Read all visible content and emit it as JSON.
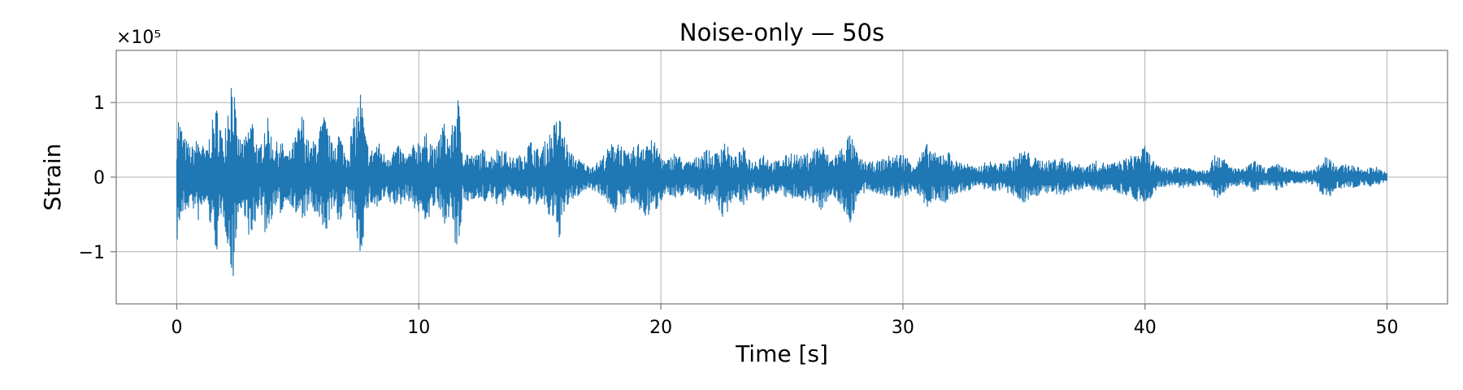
{
  "chart_data": {
    "type": "line",
    "title": "Noise-only — 50s",
    "xlabel": "Time [s]",
    "ylabel": "Strain",
    "y_offset_label": "×10⁵",
    "xlim": [
      -2.5,
      52.5
    ],
    "ylim": [
      -1.7,
      1.7
    ],
    "xticks": [
      0,
      10,
      20,
      30,
      40,
      50
    ],
    "xtick_labels": [
      "0",
      "10",
      "20",
      "30",
      "40",
      "50"
    ],
    "yticks": [
      -1,
      0,
      1
    ],
    "ytick_labels": [
      "−1",
      "0",
      "1"
    ],
    "grid": true,
    "series": [
      {
        "color": "#1f77b4",
        "x_range": [
          0,
          50
        ],
        "envelope": {
          "t": [
            0.0,
            0.15,
            0.3,
            0.6,
            0.9,
            1.2,
            1.5,
            1.7,
            1.9,
            2.1,
            2.3,
            2.5,
            2.8,
            3.1,
            3.4,
            3.7,
            4.0,
            4.3,
            4.6,
            4.9,
            5.2,
            5.5,
            5.8,
            6.1,
            6.4,
            6.7,
            7.0,
            7.3,
            7.6,
            7.8,
            8.0,
            8.3,
            8.6,
            8.9,
            9.2,
            9.5,
            9.8,
            10.1,
            10.4,
            10.7,
            11.0,
            11.3,
            11.6,
            11.8,
            12.0,
            12.3,
            12.6,
            13.0,
            13.4,
            13.8,
            14.2,
            14.6,
            15.0,
            15.4,
            15.8,
            16.2,
            16.6,
            17.0,
            17.4,
            17.8,
            18.2,
            18.6,
            19.0,
            19.4,
            19.8,
            20.2,
            20.6,
            21.0,
            21.4,
            21.8,
            22.2,
            22.6,
            23.0,
            23.4,
            23.8,
            24.2,
            24.6,
            25.0,
            25.4,
            25.8,
            26.2,
            26.6,
            27.0,
            27.4,
            27.8,
            28.2,
            28.6,
            29.0,
            29.5,
            30.0,
            30.5,
            31.0,
            31.4,
            31.8,
            32.2,
            32.6,
            33.0,
            33.5,
            34.0,
            34.5,
            35.0,
            35.5,
            36.0,
            36.5,
            37.0,
            37.5,
            38.0,
            38.5,
            39.0,
            39.5,
            40.0,
            40.5,
            41.0,
            41.5,
            42.0,
            42.5,
            43.0,
            43.5,
            44.0,
            44.5,
            45.0,
            45.5,
            46.0,
            46.5,
            47.0,
            47.5,
            48.0,
            48.5,
            49.0,
            49.5,
            50.0
          ],
          "upper": [
            0.95,
            0.75,
            0.55,
            0.4,
            0.55,
            0.35,
            0.8,
            1.0,
            0.5,
            1.05,
            1.55,
            0.55,
            0.5,
            0.85,
            0.35,
            0.88,
            0.45,
            0.5,
            0.3,
            0.55,
            0.88,
            0.4,
            0.58,
            0.85,
            0.45,
            0.65,
            0.3,
            0.75,
            1.2,
            0.55,
            0.35,
            0.5,
            0.3,
            0.38,
            0.42,
            0.28,
            0.45,
            0.55,
            0.6,
            0.35,
            0.78,
            0.5,
            1.2,
            0.4,
            0.35,
            0.28,
            0.38,
            0.3,
            0.45,
            0.25,
            0.3,
            0.5,
            0.35,
            0.6,
            0.85,
            0.35,
            0.25,
            0.15,
            0.2,
            0.38,
            0.55,
            0.3,
            0.45,
            0.55,
            0.45,
            0.2,
            0.35,
            0.2,
            0.25,
            0.4,
            0.3,
            0.52,
            0.25,
            0.4,
            0.2,
            0.35,
            0.2,
            0.25,
            0.35,
            0.28,
            0.35,
            0.48,
            0.25,
            0.38,
            0.6,
            0.25,
            0.2,
            0.22,
            0.3,
            0.32,
            0.18,
            0.45,
            0.3,
            0.38,
            0.22,
            0.2,
            0.12,
            0.22,
            0.18,
            0.25,
            0.38,
            0.25,
            0.22,
            0.28,
            0.2,
            0.15,
            0.22,
            0.18,
            0.22,
            0.3,
            0.42,
            0.15,
            0.12,
            0.15,
            0.12,
            0.1,
            0.35,
            0.15,
            0.1,
            0.22,
            0.12,
            0.18,
            0.1,
            0.08,
            0.1,
            0.32,
            0.15,
            0.18,
            0.1,
            0.15,
            0.05
          ],
          "lower": [
            -0.9,
            -0.6,
            -0.5,
            -0.38,
            -0.6,
            -0.35,
            -0.85,
            -1.05,
            -0.5,
            -0.9,
            -1.55,
            -0.55,
            -0.5,
            -1.0,
            -0.35,
            -0.85,
            -0.45,
            -0.5,
            -0.3,
            -0.52,
            -0.6,
            -0.4,
            -0.58,
            -0.85,
            -0.45,
            -0.65,
            -0.3,
            -0.6,
            -1.1,
            -0.55,
            -0.35,
            -0.45,
            -0.3,
            -0.38,
            -0.4,
            -0.28,
            -0.42,
            -0.55,
            -0.6,
            -0.35,
            -0.65,
            -0.5,
            -1.2,
            -0.4,
            -0.35,
            -0.28,
            -0.35,
            -0.3,
            -0.42,
            -0.25,
            -0.3,
            -0.4,
            -0.35,
            -0.55,
            -0.82,
            -0.35,
            -0.25,
            -0.15,
            -0.2,
            -0.35,
            -0.52,
            -0.3,
            -0.45,
            -0.55,
            -0.45,
            -0.2,
            -0.35,
            -0.2,
            -0.25,
            -0.38,
            -0.3,
            -0.6,
            -0.25,
            -0.38,
            -0.2,
            -0.33,
            -0.2,
            -0.25,
            -0.32,
            -0.28,
            -0.35,
            -0.45,
            -0.25,
            -0.36,
            -0.65,
            -0.25,
            -0.2,
            -0.22,
            -0.3,
            -0.28,
            -0.18,
            -0.42,
            -0.3,
            -0.36,
            -0.22,
            -0.2,
            -0.12,
            -0.2,
            -0.18,
            -0.25,
            -0.35,
            -0.25,
            -0.22,
            -0.28,
            -0.2,
            -0.15,
            -0.2,
            -0.18,
            -0.22,
            -0.28,
            -0.4,
            -0.15,
            -0.12,
            -0.15,
            -0.12,
            -0.1,
            -0.32,
            -0.15,
            -0.1,
            -0.2,
            -0.12,
            -0.18,
            -0.1,
            -0.08,
            -0.1,
            -0.3,
            -0.15,
            -0.16,
            -0.1,
            -0.14,
            -0.05
          ]
        }
      }
    ]
  },
  "colors": {
    "series": "#1f77b4",
    "grid": "#b0b0b0",
    "axes": "#808080",
    "background": "#ffffff"
  }
}
